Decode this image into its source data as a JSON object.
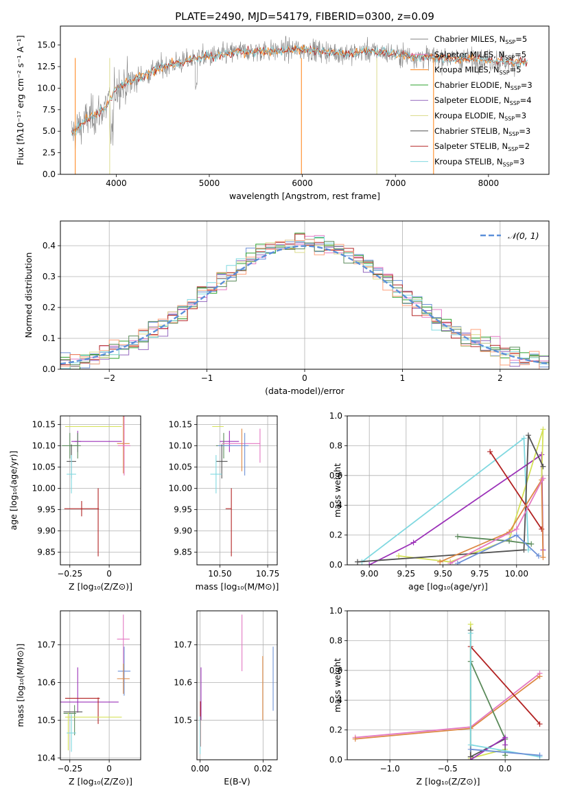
{
  "figure_title": "PLATE=2490, MJD=54179, FIBERID=0300, z=0.09",
  "colors": {
    "Chabrier MILES": "#808080",
    "Salpeter MILES": "#e377c2",
    "Kroupa MILES": "#ff7f0e",
    "Chabrier ELODIE": "#2ca02c",
    "Salpeter ELODIE": "#9467bd",
    "Kroupa ELODIE": "#dbdb8d",
    "Chabrier STELIB": "#7f7f7f",
    "Salpeter STELIB": "#d62728",
    "Kroupa STELIB": "#17becf",
    "lines": [
      "#808080",
      "#e377c2",
      "#dd8844",
      "#5a8a5a",
      "#9b30b8",
      "#d4e157",
      "#505050",
      "#b22222",
      "#7fd8e0",
      "#6b8fd6",
      "#ffa07a",
      "#c71585"
    ]
  },
  "chart_data": [
    {
      "id": "spectrum",
      "type": "line",
      "title": "PLATE=2490, MJD=54179, FIBERID=0300, z=0.09",
      "xlabel": "wavelength [Angstrom, rest frame]",
      "ylabel": "Flux [fλ10⁻¹⁷ erg cm⁻² s⁻¹ A⁻¹]",
      "xlim": [
        3400,
        8650
      ],
      "ylim": [
        0,
        17.2
      ],
      "xticks": [
        4000,
        5000,
        6000,
        7000,
        8000
      ],
      "yticks": [
        0.0,
        2.5,
        5.0,
        7.5,
        10.0,
        12.5,
        15.0
      ],
      "legend_position": "right",
      "legend": [
        "Chabrier MILES, N_SSP=5",
        "Salpeter MILES, N_SSP=5",
        "Kroupa MILES, N_SSP=5",
        "Chabrier ELODIE, N_SSP=3",
        "Salpeter ELODIE, N_SSP=4",
        "Kroupa ELODIE, N_SSP=3",
        "Chabrier STELIB, N_SSP=3",
        "Salpeter STELIB, N_SSP=2",
        "Kroupa STELIB, N_SSP=3"
      ],
      "continuum": [
        [
          3500,
          4.5
        ],
        [
          3600,
          5.5
        ],
        [
          3700,
          6.5
        ],
        [
          3800,
          7.0
        ],
        [
          3900,
          8.0
        ],
        [
          4000,
          10.0
        ],
        [
          4100,
          10.5
        ],
        [
          4200,
          11.0
        ],
        [
          4300,
          11.5
        ],
        [
          4400,
          12.0
        ],
        [
          4500,
          12.5
        ],
        [
          4700,
          13.0
        ],
        [
          4900,
          13.5
        ],
        [
          5100,
          13.8
        ],
        [
          5300,
          14.2
        ],
        [
          5500,
          14.3
        ],
        [
          5700,
          14.3
        ],
        [
          5900,
          14.5
        ],
        [
          6100,
          14.4
        ],
        [
          6300,
          14.2
        ],
        [
          6500,
          14.0
        ],
        [
          6700,
          14.3
        ],
        [
          6900,
          14.1
        ],
        [
          7100,
          13.8
        ],
        [
          7300,
          13.6
        ],
        [
          7500,
          13.5
        ],
        [
          7700,
          13.4
        ],
        [
          7900,
          13.3
        ],
        [
          8100,
          13.2
        ],
        [
          8300,
          13.0
        ],
        [
          8400,
          13.0
        ]
      ]
    },
    {
      "id": "residuals",
      "type": "step",
      "xlabel": "(data-model)/error",
      "ylabel": "Normed distribution",
      "xlim": [
        -2.5,
        2.5
      ],
      "ylim": [
        0,
        0.48
      ],
      "xticks": [
        -2,
        -1,
        0,
        1,
        2
      ],
      "yticks": [
        0.0,
        0.1,
        0.2,
        0.3,
        0.4
      ],
      "legend": "𝒩(0, 1)",
      "legend_position": "top-right",
      "normal_curve": {
        "mean": 0,
        "sigma": 1
      }
    },
    {
      "id": "age-Z",
      "type": "errorbar",
      "xlabel": "Z [log₁₀(Z/Z⊙)]",
      "ylabel": "age  [log₁₀(age/yr)]",
      "xlim": [
        -0.31,
        0.2
      ],
      "ylim": [
        9.82,
        10.17
      ],
      "xticks": [
        -0.25,
        0.0
      ],
      "ytick_labels": [
        "9.85",
        "9.90",
        "9.95",
        "10.00",
        "10.05",
        "10.10",
        "10.15"
      ],
      "yticks": [
        9.85,
        9.9,
        9.95,
        10.0,
        10.05,
        10.1,
        10.15
      ],
      "points": [
        {
          "x": -0.1,
          "xerr": 0.18,
          "y": 10.145,
          "yerr": 0.0,
          "c": 5
        },
        {
          "x": -0.08,
          "xerr": 0.16,
          "y": 10.11,
          "yerr": 0.0,
          "c": 4
        },
        {
          "x": -0.2,
          "xerr": 0.02,
          "y": 10.11,
          "yerr": 0.025,
          "c": 4
        },
        {
          "x": -0.2,
          "xerr": 0.02,
          "y": 10.1,
          "yerr": 0.03,
          "c": 3
        },
        {
          "x": -0.25,
          "xerr": 0.05,
          "y": 10.1,
          "yerr": 0.03,
          "c": 3
        },
        {
          "x": 0.09,
          "xerr": 0.04,
          "y": 10.105,
          "yerr": 0.07,
          "c": 2
        },
        {
          "x": 0.095,
          "xerr": 0.04,
          "y": 10.1,
          "yerr": 0.07,
          "c": 1
        },
        {
          "x": -0.24,
          "xerr": 0.03,
          "y": 10.063,
          "yerr": 0.04,
          "c": 6
        },
        {
          "x": -0.24,
          "xerr": 0.03,
          "y": 10.033,
          "yerr": 0.045,
          "c": 8
        },
        {
          "x": -0.175,
          "xerr": 0.11,
          "y": 9.952,
          "yerr": 0.018,
          "c": 7
        },
        {
          "x": -0.07,
          "xerr": 0.0,
          "y": 9.92,
          "yerr": 0.08,
          "c": 7
        }
      ]
    },
    {
      "id": "age-mass",
      "type": "errorbar",
      "xlabel": "mass [log₁₀(M/M⊙)]",
      "ylabel": "",
      "xlim": [
        10.38,
        10.8
      ],
      "ylim": [
        9.82,
        10.17
      ],
      "xticks": [
        10.5,
        10.75
      ],
      "xtick_labels": [
        "10.50",
        "10.75"
      ],
      "yticks": [
        9.85,
        9.9,
        9.95,
        10.0,
        10.05,
        10.1,
        10.15
      ],
      "ytick_labels": [
        "9.85",
        "9.90",
        "9.95",
        "10.00",
        "10.05",
        "10.10",
        "10.15"
      ],
      "points": [
        {
          "x": 10.49,
          "xerr": 0.03,
          "y": 10.145,
          "yerr": 0.0,
          "c": 5
        },
        {
          "x": 10.55,
          "xerr": 0.05,
          "y": 10.11,
          "yerr": 0.025,
          "c": 4
        },
        {
          "x": 10.52,
          "xerr": 0.04,
          "y": 10.1,
          "yerr": 0.03,
          "c": 3
        },
        {
          "x": 10.57,
          "xerr": 0.08,
          "y": 10.1,
          "yerr": 0.0,
          "c": 9
        },
        {
          "x": 10.61,
          "xerr": 0.1,
          "y": 10.105,
          "yerr": 0.0,
          "c": 1
        },
        {
          "x": 10.615,
          "xerr": 0.0,
          "y": 10.09,
          "yerr": 0.05,
          "c": 2
        },
        {
          "x": 10.63,
          "xerr": 0.0,
          "y": 10.08,
          "yerr": 0.05,
          "c": 9
        },
        {
          "x": 10.71,
          "xerr": 0.0,
          "y": 10.1,
          "yerr": 0.04,
          "c": 1
        },
        {
          "x": 10.51,
          "xerr": 0.03,
          "y": 10.063,
          "yerr": 0.04,
          "c": 6
        },
        {
          "x": 10.48,
          "xerr": 0.03,
          "y": 10.033,
          "yerr": 0.045,
          "c": 8
        },
        {
          "x": 10.545,
          "xerr": 0.015,
          "y": 9.952,
          "yerr": 0.0,
          "c": 7
        },
        {
          "x": 10.56,
          "xerr": 0.0,
          "y": 9.92,
          "yerr": 0.08,
          "c": 7
        }
      ]
    },
    {
      "id": "weight-age",
      "type": "line",
      "xlabel": "age  [log₁₀(age/yr)]",
      "ylabel": "mass weight",
      "xlim": [
        8.85,
        10.22
      ],
      "ylim": [
        0,
        1.0
      ],
      "xticks": [
        9.0,
        9.25,
        9.5,
        9.75,
        10.0
      ],
      "xtick_labels": [
        "9.00",
        "9.25",
        "9.50",
        "9.75",
        "10.00"
      ],
      "yticks": [
        0.0,
        0.2,
        0.4,
        0.6,
        0.8,
        1.0
      ],
      "ytick_labels": [
        "0.0",
        "0.2",
        "0.4",
        "0.6",
        "0.8",
        "1.0"
      ],
      "series": [
        {
          "c": 8,
          "x": [
            8.95,
            10.05,
            10.08
          ],
          "y": [
            0.02,
            0.85,
            0.1
          ]
        },
        {
          "c": 4,
          "x": [
            9.0,
            9.3,
            10.17,
            10.18
          ],
          "y": [
            0.0,
            0.15,
            0.74,
            0.1
          ]
        },
        {
          "c": 5,
          "x": [
            9.2,
            9.55,
            9.95,
            10.18,
            10.17
          ],
          "y": [
            0.06,
            0.02,
            0.17,
            0.91,
            0.57
          ]
        },
        {
          "c": 6,
          "x": [
            8.92,
            10.05,
            10.08,
            10.18
          ],
          "y": [
            0.02,
            0.1,
            0.87,
            0.66
          ]
        },
        {
          "c": 7,
          "x": [
            9.82,
            10.17
          ],
          "y": [
            0.76,
            0.24
          ]
        },
        {
          "c": 2,
          "x": [
            9.48,
            9.95,
            10.17,
            10.18
          ],
          "y": [
            0.02,
            0.22,
            0.57,
            0.05
          ]
        },
        {
          "c": 3,
          "x": [
            9.6,
            9.95,
            10.1
          ],
          "y": [
            0.19,
            0.16,
            0.14
          ]
        },
        {
          "c": 1,
          "x": [
            9.55,
            10.0,
            10.18
          ],
          "y": [
            0.01,
            0.24,
            0.58
          ]
        },
        {
          "c": 9,
          "x": [
            9.6,
            10.0,
            10.15
          ],
          "y": [
            0.01,
            0.2,
            0.06
          ]
        }
      ]
    },
    {
      "id": "mass-Z",
      "type": "errorbar",
      "xlabel": "Z [log₁₀(Z/Z⊙)]",
      "ylabel": "mass [log₁₀(M/M⊙)]",
      "xlim": [
        -0.31,
        0.2
      ],
      "ylim": [
        10.395,
        10.79
      ],
      "xticks": [
        -0.25,
        0.0
      ],
      "yticks": [
        10.4,
        10.5,
        10.6,
        10.7
      ],
      "points": [
        {
          "x": 0.09,
          "xerr": 0.04,
          "y": 10.715,
          "yerr": 0.065,
          "c": 1
        },
        {
          "x": 0.095,
          "xerr": 0.04,
          "y": 10.63,
          "yerr": 0.065,
          "c": 9
        },
        {
          "x": 0.09,
          "xerr": 0.04,
          "y": 10.61,
          "yerr": 0.04,
          "c": 2
        },
        {
          "x": -0.2,
          "xerr": 0.0,
          "y": 10.58,
          "yerr": 0.06,
          "c": 4
        },
        {
          "x": -0.17,
          "xerr": 0.23,
          "y": 10.548,
          "yerr": 0.0,
          "c": 4
        },
        {
          "x": -0.17,
          "xerr": 0.11,
          "y": 10.558,
          "yerr": 0.0,
          "c": 7
        },
        {
          "x": -0.07,
          "xerr": 0.0,
          "y": 10.525,
          "yerr": 0.035,
          "c": 7
        },
        {
          "x": -0.23,
          "xerr": 0.06,
          "y": 10.522,
          "yerr": 0.0,
          "c": 6
        },
        {
          "x": -0.25,
          "xerr": 0.04,
          "y": 10.518,
          "yerr": 0.0,
          "c": 3
        },
        {
          "x": -0.22,
          "xerr": 0.0,
          "y": 10.5,
          "yerr": 0.04,
          "c": 3
        },
        {
          "x": -0.1,
          "xerr": 0.18,
          "y": 10.508,
          "yerr": 0.0,
          "c": 5
        },
        {
          "x": -0.26,
          "xerr": 0.0,
          "y": 10.47,
          "yerr": 0.05,
          "c": 5
        },
        {
          "x": -0.24,
          "xerr": 0.03,
          "y": 10.466,
          "yerr": 0.05,
          "c": 8
        }
      ]
    },
    {
      "id": "mass-ebv",
      "type": "errorbar",
      "xlabel": "E(B-V)",
      "ylabel": "",
      "xlim": [
        -0.001,
        0.0245
      ],
      "ylim": [
        10.395,
        10.79
      ],
      "xticks": [
        0.0,
        0.02
      ],
      "xtick_labels": [
        "0.00",
        "0.02"
      ],
      "yticks": [
        10.5,
        10.6,
        10.7
      ],
      "ytick_labels": [
        "10.5",
        "10.6",
        "10.7"
      ],
      "points": [
        {
          "x": 0.0133,
          "xerr": 0.0,
          "y": 10.705,
          "yerr": 0.075,
          "c": 1
        },
        {
          "x": 0.0232,
          "xerr": 0.0,
          "y": 10.61,
          "yerr": 0.085,
          "c": 9
        },
        {
          "x": 0.0199,
          "xerr": 0.0,
          "y": 10.585,
          "yerr": 0.085,
          "c": 2
        },
        {
          "x": 0.0003,
          "xerr": 0.0,
          "y": 10.57,
          "yerr": 0.07,
          "c": 4
        },
        {
          "x": 0.0001,
          "xerr": 0.0,
          "y": 10.49,
          "yerr": 0.06,
          "c": 7
        },
        {
          "x": 0.0,
          "xerr": 0.0,
          "y": 10.46,
          "yerr": 0.05,
          "c": 8
        }
      ]
    },
    {
      "id": "weight-Z",
      "type": "line",
      "xlabel": "Z [log₁₀(Z/Z⊙)]",
      "ylabel": "mass weight",
      "xlim": [
        -1.37,
        0.38
      ],
      "ylim": [
        0,
        1.0
      ],
      "xticks": [
        -1.0,
        -0.5,
        0.0
      ],
      "xtick_labels": [
        "−1.0",
        "−0.5",
        "0.0"
      ],
      "yticks": [
        0.0,
        0.2,
        0.4,
        0.6,
        0.8,
        1.0
      ],
      "ytick_labels": [
        "0.0",
        "0.2",
        "0.4",
        "0.6",
        "0.8",
        "1.0"
      ],
      "series": [
        {
          "c": 1,
          "x": [
            -1.3,
            -0.3,
            0.3
          ],
          "y": [
            0.15,
            0.22,
            0.58
          ]
        },
        {
          "c": 2,
          "x": [
            -1.3,
            -0.3,
            0.3
          ],
          "y": [
            0.14,
            0.21,
            0.56
          ]
        },
        {
          "c": 7,
          "x": [
            -0.3,
            0.3
          ],
          "y": [
            0.76,
            0.24
          ]
        },
        {
          "c": 5,
          "x": [
            -0.3,
            -0.3,
            0.0
          ],
          "y": [
            0.91,
            0.01,
            0.07
          ]
        },
        {
          "c": 6,
          "x": [
            -0.3,
            -0.3,
            0.0
          ],
          "y": [
            0.87,
            0.02,
            0.14
          ]
        },
        {
          "c": 3,
          "x": [
            -0.3,
            0.0,
            0.0
          ],
          "y": [
            0.66,
            0.14,
            0.03
          ]
        },
        {
          "c": 4,
          "x": [
            -0.3,
            0.0,
            0.0
          ],
          "y": [
            0.0,
            0.15,
            0.1
          ]
        },
        {
          "c": 8,
          "x": [
            -0.3,
            -0.3,
            0.3
          ],
          "y": [
            0.85,
            0.1,
            0.02
          ]
        },
        {
          "c": 9,
          "x": [
            -0.3,
            0.3
          ],
          "y": [
            0.07,
            0.03
          ]
        }
      ]
    }
  ]
}
